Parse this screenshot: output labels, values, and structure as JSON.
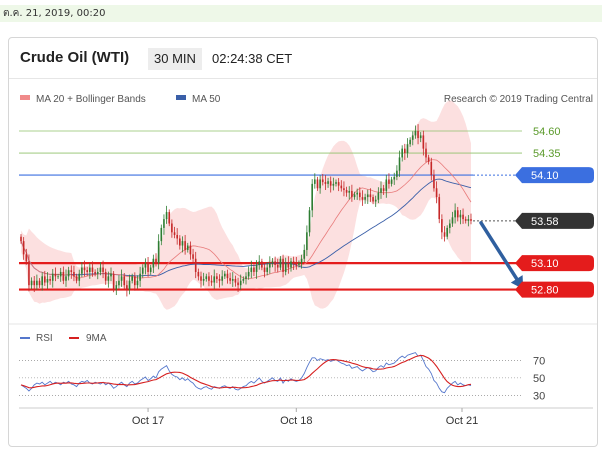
{
  "timestamp": "ต.ค. 21, 2019, 00:20",
  "header": {
    "title": "Crude Oil (WTI)",
    "timeframe": "30 MIN",
    "time": "02:24:38 CET"
  },
  "legend": {
    "ma20": "MA 20 + Bollinger Bands",
    "ma50": "MA 50",
    "credit": "Research © 2019 Trading Central"
  },
  "rsi_legend": {
    "rsi": "RSI",
    "ma9": "9MA"
  },
  "colors": {
    "up": "#2e7d32",
    "down": "#c62828",
    "band": "#fbd6d6",
    "ma50": "#3a5fa8",
    "resistance": "#8fc26a",
    "pivot": "#3b6fe0",
    "support": "#e41c1c",
    "current": "#333333",
    "rsi": "#5577cc",
    "rsi_ma": "#d62020",
    "arrow": "#2f5f9f"
  },
  "chart_data": [
    {
      "type": "candlestick",
      "title": "Crude Oil (WTI)",
      "timeframe": "30 MIN",
      "x_ticks": [
        "Oct 17",
        "Oct 18",
        "Oct 21"
      ],
      "ylim": [
        52.5,
        54.85
      ],
      "levels": [
        {
          "value": 54.6,
          "label": "54.60",
          "role": "resistance"
        },
        {
          "value": 54.35,
          "label": "54.35",
          "role": "resistance"
        },
        {
          "value": 54.1,
          "label": "54.10",
          "role": "pivot"
        },
        {
          "value": 53.58,
          "label": "53.58",
          "role": "current"
        },
        {
          "value": 53.1,
          "label": "53.10",
          "role": "support"
        },
        {
          "value": 52.8,
          "label": "52.80",
          "role": "support"
        }
      ],
      "forecast_arrow": {
        "from": 53.58,
        "to": 52.8,
        "direction": "down"
      },
      "close": [
        53.35,
        53.2,
        53.12,
        52.85,
        52.9,
        52.85,
        52.9,
        52.85,
        52.95,
        52.88,
        52.92,
        52.9,
        52.98,
        52.95,
        52.95,
        53.0,
        52.9,
        52.95,
        53.02,
        53.0,
        52.95,
        52.9,
        52.98,
        53.05,
        53.02,
        53.0,
        53.05,
        53.0,
        52.98,
        53.0,
        53.05,
        53.0,
        52.9,
        52.95,
        52.98,
        52.8,
        52.85,
        52.9,
        52.95,
        52.85,
        52.8,
        52.9,
        52.95,
        52.85,
        52.9,
        52.98,
        53.05,
        53.1,
        53.0,
        53.05,
        53.15,
        53.1,
        53.35,
        53.5,
        53.6,
        53.68,
        53.55,
        53.45,
        53.42,
        53.38,
        53.3,
        53.35,
        53.25,
        53.3,
        53.2,
        53.15,
        53.0,
        52.95,
        52.9,
        52.92,
        52.95,
        52.9,
        52.88,
        52.95,
        52.92,
        52.9,
        52.95,
        52.98,
        52.93,
        52.9,
        52.92,
        52.88,
        52.85,
        52.9,
        52.92,
        52.95,
        53.0,
        53.05,
        53.0,
        53.08,
        53.12,
        53.05,
        53.0,
        53.05,
        53.1,
        53.12,
        53.08,
        53.05,
        53.15,
        53.0,
        53.1,
        53.05,
        53.12,
        53.1,
        53.08,
        53.1,
        53.15,
        53.25,
        53.45,
        53.7,
        54.0,
        54.05,
        53.95,
        54.05,
        54.02,
        54.0,
        54.03,
        53.98,
        54.0,
        54.02,
        53.98,
        53.95,
        53.93,
        53.9,
        53.92,
        53.85,
        53.88,
        53.9,
        53.85,
        53.82,
        53.85,
        53.88,
        53.85,
        53.8,
        53.82,
        53.9,
        53.95,
        53.92,
        54.05,
        54.0,
        54.05,
        54.08,
        54.15,
        54.3,
        54.4,
        54.35,
        54.45,
        54.5,
        54.55,
        54.6,
        54.52,
        54.55,
        54.4,
        54.3,
        54.25,
        54.1,
        53.95,
        53.85,
        53.6,
        53.45,
        53.4,
        53.5,
        53.55,
        53.62,
        53.7,
        53.62,
        53.65,
        53.6,
        53.58,
        53.6,
        53.58
      ],
      "rsi": {
        "ticks": [
          70,
          50,
          30
        ],
        "ylim": [
          20,
          82
        ],
        "values": [
          42,
          40,
          38,
          35,
          38,
          42,
          44,
          43,
          45,
          42,
          44,
          46,
          43,
          45,
          44,
          42,
          45,
          44,
          46,
          43,
          42,
          40,
          44,
          46,
          45,
          47,
          44,
          43,
          45,
          44,
          43,
          45,
          42,
          44,
          42,
          38,
          40,
          43,
          45,
          42,
          40,
          44,
          46,
          43,
          44,
          47,
          49,
          51,
          47,
          49,
          52,
          50,
          57,
          60,
          62,
          64,
          58,
          54,
          52,
          51,
          48,
          50,
          47,
          49,
          46,
          44,
          40,
          38,
          37,
          39,
          40,
          38,
          37,
          40,
          39,
          38,
          40,
          41,
          39,
          38,
          40,
          37,
          36,
          38,
          40,
          41,
          44,
          46,
          44,
          47,
          50,
          46,
          44,
          46,
          48,
          50,
          47,
          46,
          50,
          44,
          48,
          46,
          49,
          47,
          46,
          47,
          50,
          55,
          62,
          68,
          73,
          73,
          70,
          72,
          71,
          70,
          71,
          69,
          70,
          71,
          69,
          67,
          66,
          64,
          65,
          61,
          62,
          63,
          60,
          58,
          60,
          62,
          60,
          57,
          58,
          62,
          64,
          62,
          67,
          65,
          66,
          67,
          70,
          73,
          75,
          73,
          76,
          77,
          78,
          79,
          75,
          76,
          70,
          63,
          60,
          55,
          47,
          44,
          38,
          34,
          33,
          38,
          41,
          44,
          46,
          42,
          44,
          42,
          41,
          42,
          41
        ]
      }
    }
  ]
}
